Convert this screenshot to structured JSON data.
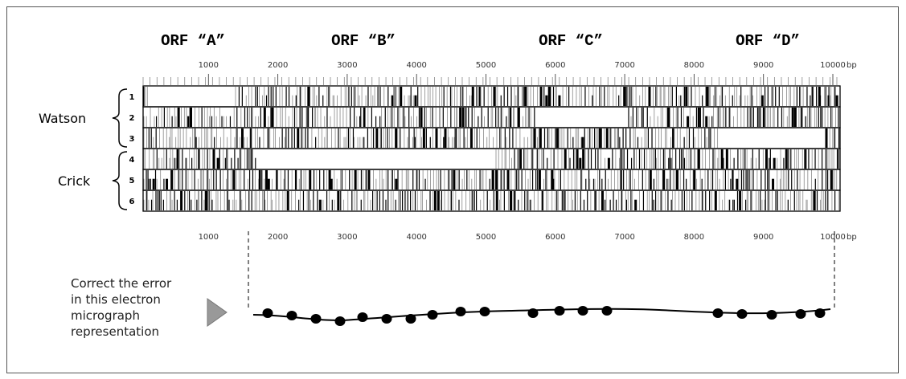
{
  "orf_labels": [
    "ORF “A”",
    "ORF “B”",
    "ORF “C”",
    "ORF “D”"
  ],
  "axis": {
    "ticks": [
      1000,
      2000,
      3000,
      4000,
      5000,
      6000,
      7000,
      8000,
      9000,
      10000
    ],
    "unit": "bp"
  },
  "strands": [
    {
      "name": "Watson",
      "frames": [
        "1",
        "2",
        "3"
      ]
    },
    {
      "name": "Crick",
      "frames": [
        "4",
        "5",
        "6"
      ]
    }
  ],
  "instruction": [
    "Correct the error",
    "in this electron",
    "micrograph",
    "representation"
  ]
}
